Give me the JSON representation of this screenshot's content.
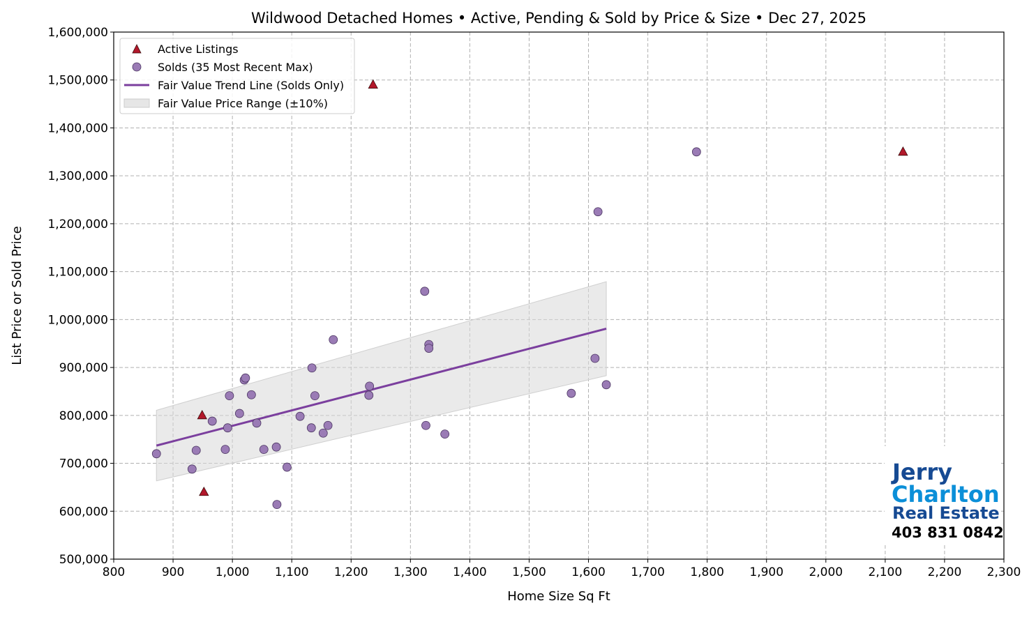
{
  "chart_data": {
    "type": "scatter",
    "title": "Wildwood Detached Homes • Active, Pending & Sold by Price & Size • Dec 27, 2025",
    "xlabel": "Home Size Sq Ft",
    "ylabel": "List Price or Sold Price",
    "xlim": [
      800,
      2300
    ],
    "ylim": [
      500000,
      1600000
    ],
    "x_ticks": [
      800,
      900,
      1000,
      1100,
      1200,
      1300,
      1400,
      1500,
      1600,
      1700,
      1800,
      1900,
      2000,
      2100,
      2200,
      2300
    ],
    "y_ticks": [
      500000,
      600000,
      700000,
      800000,
      900000,
      1000000,
      1100000,
      1200000,
      1300000,
      1400000,
      1500000,
      1600000
    ],
    "grid": true,
    "legend_position": "top-left",
    "series": [
      {
        "name": "Active Listings",
        "marker": "triangle",
        "color": "#b2182b",
        "points": [
          [
            949,
            800000
          ],
          [
            952,
            640000
          ],
          [
            1237,
            1490000
          ],
          [
            2130,
            1350000
          ]
        ]
      },
      {
        "name": "Solds (35 Most Recent Max)",
        "marker": "circle",
        "color": "#9a7bb5",
        "points": [
          [
            872,
            720000
          ],
          [
            932,
            688000
          ],
          [
            939,
            727000
          ],
          [
            966,
            788000
          ],
          [
            988,
            729000
          ],
          [
            992,
            774000
          ],
          [
            995,
            841000
          ],
          [
            1012,
            804000
          ],
          [
            1020,
            874000
          ],
          [
            1022,
            878000
          ],
          [
            1032,
            843000
          ],
          [
            1041,
            784000
          ],
          [
            1053,
            729000
          ],
          [
            1074,
            734000
          ],
          [
            1075,
            614000
          ],
          [
            1092,
            692000
          ],
          [
            1114,
            798000
          ],
          [
            1133,
            774000
          ],
          [
            1134,
            899000
          ],
          [
            1139,
            841000
          ],
          [
            1153,
            763000
          ],
          [
            1161,
            779000
          ],
          [
            1170,
            958000
          ],
          [
            1230,
            842000
          ],
          [
            1231,
            861000
          ],
          [
            1324,
            1059000
          ],
          [
            1326,
            779000
          ],
          [
            1331,
            948000
          ],
          [
            1331,
            940000
          ],
          [
            1358,
            761000
          ],
          [
            1571,
            846000
          ],
          [
            1611,
            919000
          ],
          [
            1616,
            1225000
          ],
          [
            1630,
            864000
          ],
          [
            1782,
            1350000
          ]
        ]
      },
      {
        "name": "Fair Value Trend Line (Solds Only)",
        "type": "line",
        "color": "#7b3f9e",
        "points": [
          [
            872,
            737000
          ],
          [
            1630,
            981000
          ]
        ]
      },
      {
        "name": "Fair Value Price Range (±10%)",
        "type": "band",
        "color": "#d9d9d9",
        "band_pct": 10
      }
    ]
  },
  "logo": {
    "line1": "Jerry",
    "line2": "Charlton",
    "line3": "Real Estate",
    "phone": "403 831 0842"
  }
}
